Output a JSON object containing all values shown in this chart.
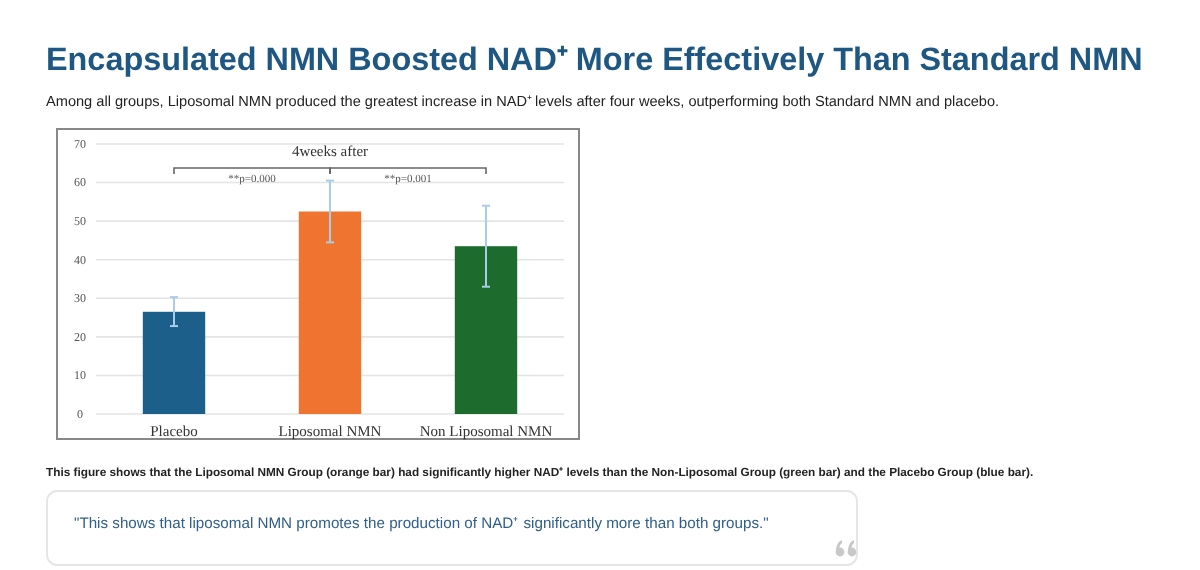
{
  "chart_data": {
    "type": "bar",
    "title": "Encapsulated NMN Boosted NAD⁺ More Effectively Than Standard NMN",
    "subtitle": "Among all groups, Liposomal NMN produced the greatest increase in NAD⁺ levels after four weeks, outperforming both Standard NMN and placebo.",
    "categories": [
      "Placebo",
      "Liposomal NMN",
      "Non Liposomal NMN"
    ],
    "values": [
      26.5,
      52.5,
      43.5
    ],
    "colors": [
      "#1b5f8a",
      "#ef7430",
      "#1e6b2e"
    ],
    "errors": [
      [
        22.8,
        30.3
      ],
      [
        44.5,
        60.5
      ],
      [
        33,
        54
      ]
    ],
    "ylim": [
      0,
      70
    ],
    "yticks": [
      0,
      10,
      20,
      30,
      40,
      50,
      60,
      70
    ],
    "grid": "y",
    "annotations": [
      "4weeks after",
      "**p=0.000",
      "**p=0.001",
      "This figure shows that the Liposomal NMN Group (orange bar) had significantly higher NAD⁺ levels than the Non-Liposomal Group (green bar) and the Placebo Group (blue bar).",
      "\"This shows that liposomal NMN promotes the production of NAD⁺ significantly more than both groups.\""
    ]
  }
}
